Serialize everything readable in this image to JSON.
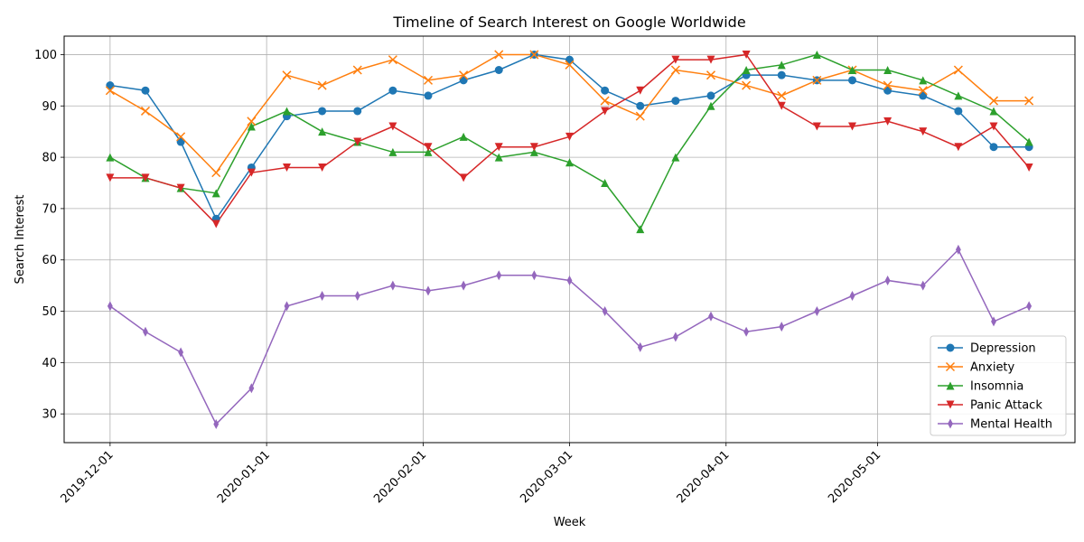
{
  "chart_data": {
    "type": "line",
    "title": "Timeline of Search Interest on Google Worldwide",
    "xlabel": "Week",
    "ylabel": "Search Interest",
    "ylim": [
      24.4,
      103.6
    ],
    "yticks": [
      30,
      40,
      50,
      60,
      70,
      80,
      90,
      100
    ],
    "xticks": [
      "2019-12-01",
      "2020-01-01",
      "2020-02-01",
      "2020-03-01",
      "2020-04-01",
      "2020-05-01"
    ],
    "grid": true,
    "legend_position": "lower right",
    "x": [
      "2019-12-01",
      "2019-12-08",
      "2019-12-15",
      "2019-12-22",
      "2019-12-29",
      "2020-01-05",
      "2020-01-12",
      "2020-01-19",
      "2020-01-26",
      "2020-02-02",
      "2020-02-09",
      "2020-02-16",
      "2020-02-23",
      "2020-03-01",
      "2020-03-08",
      "2020-03-15",
      "2020-03-22",
      "2020-03-29",
      "2020-04-05",
      "2020-04-12",
      "2020-04-19",
      "2020-04-26",
      "2020-05-03",
      "2020-05-10",
      "2020-05-17",
      "2020-05-24",
      "2020-05-31"
    ],
    "series": [
      {
        "name": "Depression",
        "color": "#1f77b4",
        "marker": "circle",
        "values": [
          94,
          93,
          83,
          68,
          78,
          88,
          89,
          89,
          93,
          92,
          95,
          97,
          100,
          99,
          93,
          90,
          91,
          92,
          96,
          96,
          95,
          95,
          93,
          92,
          89,
          82,
          82
        ]
      },
      {
        "name": "Anxiety",
        "color": "#ff7f0e",
        "marker": "x",
        "values": [
          93,
          89,
          84,
          77,
          87,
          96,
          94,
          97,
          99,
          95,
          96,
          100,
          100,
          98,
          91,
          88,
          97,
          96,
          94,
          92,
          95,
          97,
          94,
          93,
          97,
          91,
          91
        ]
      },
      {
        "name": "Insomnia",
        "color": "#2ca02c",
        "marker": "triangle-up",
        "values": [
          80,
          76,
          74,
          73,
          86,
          89,
          85,
          83,
          81,
          81,
          84,
          80,
          81,
          79,
          75,
          66,
          80,
          90,
          97,
          98,
          100,
          97,
          97,
          95,
          92,
          89,
          83
        ]
      },
      {
        "name": "Panic Attack",
        "color": "#d62728",
        "marker": "triangle-down",
        "values": [
          76,
          76,
          74,
          67,
          77,
          78,
          78,
          83,
          86,
          82,
          76,
          82,
          82,
          84,
          89,
          93,
          99,
          99,
          100,
          90,
          86,
          86,
          87,
          85,
          82,
          86,
          78
        ]
      },
      {
        "name": "Mental Health",
        "color": "#9467bd",
        "marker": "thin-diamond",
        "values": [
          51,
          46,
          42,
          28,
          35,
          51,
          53,
          53,
          55,
          54,
          55,
          57,
          57,
          56,
          50,
          43,
          45,
          49,
          46,
          47,
          50,
          53,
          56,
          55,
          62,
          48,
          51
        ]
      }
    ]
  }
}
